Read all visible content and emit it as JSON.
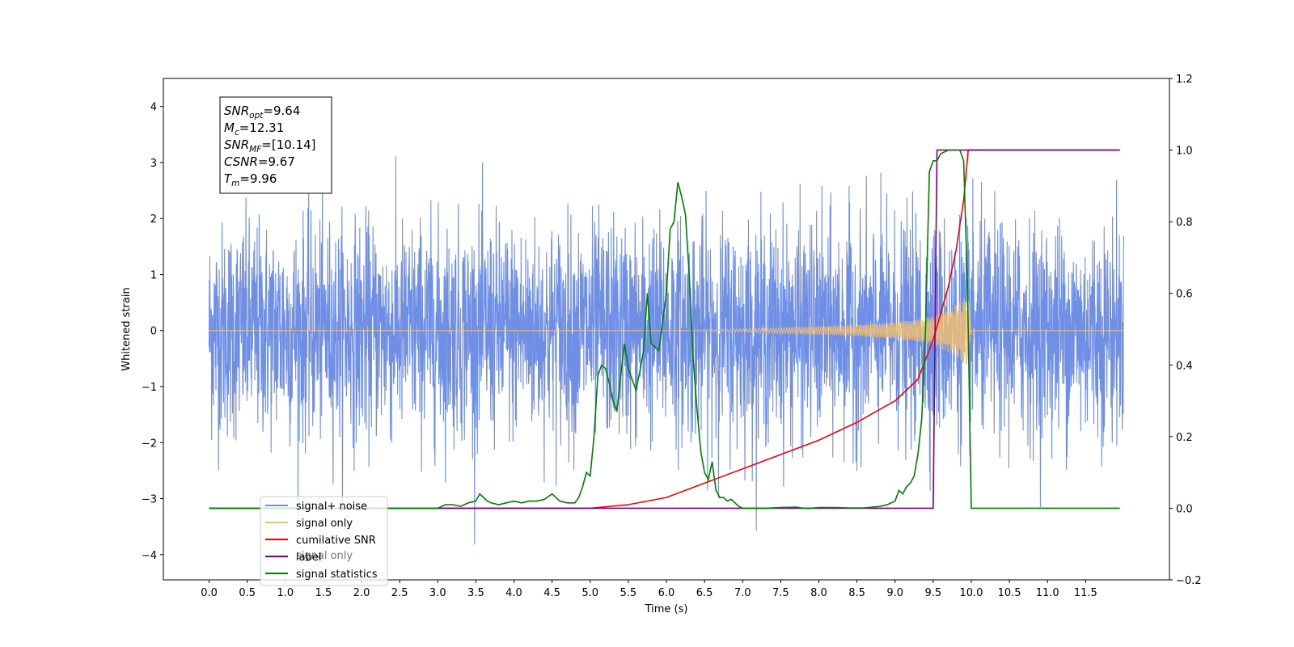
{
  "chart_data": {
    "type": "line",
    "xlabel": "Time (s)",
    "ylabel": "Whitened strain",
    "xlim": [
      -0.6,
      12.6
    ],
    "ylim": [
      -4.45,
      4.5
    ],
    "y2lim": [
      -0.2,
      1.2
    ],
    "x_ticks": [
      "0.0",
      "0.5",
      "1.0",
      "1.5",
      "2.0",
      "2.5",
      "3.0",
      "3.5",
      "4.0",
      "4.5",
      "5.0",
      "5.5",
      "6.0",
      "6.5",
      "7.0",
      "7.5",
      "8.0",
      "8.5",
      "9.0",
      "9.5",
      "10.0",
      "10.5",
      "11.0",
      "11.5"
    ],
    "y_ticks": [
      "−4",
      "−3",
      "−2",
      "−1",
      "0",
      "1",
      "2",
      "3",
      "4"
    ],
    "y2_ticks": [
      "−0.2",
      "0.0",
      "0.2",
      "0.4",
      "0.6",
      "0.8",
      "1.0",
      "1.2"
    ],
    "info_box": {
      "snr_opt": "SNR_opt=9.64",
      "mc": "M_c=12.31",
      "snr_mf": "SNR_MF=[10.14]",
      "csnr": "CSNR=9.67",
      "tm": "T_m=9.96",
      "lines": [
        {
          "main": "SNR",
          "sub": "opt",
          "value": "=9.64"
        },
        {
          "main": "M",
          "sub": "c",
          "value": "=12.31"
        },
        {
          "main": "SNR",
          "sub": "MF",
          "value": "=[10.14]"
        },
        {
          "main": "CSNR",
          "sub": "",
          "value": "=9.67"
        },
        {
          "main": "T",
          "sub": "m",
          "value": "=9.96"
        }
      ]
    },
    "legend": {
      "placement": "lower-left",
      "entries": [
        {
          "label": "signal+ noise",
          "color": "#6f8ee6"
        },
        {
          "label": "signal only",
          "color": "#f5c26b"
        },
        {
          "label": "cumilative SNR",
          "color": "#ff0000"
        },
        {
          "label": "label",
          "color": "#800080"
        },
        {
          "label": "signal statistics",
          "color": "#008000"
        }
      ],
      "ghost_text": "signal only"
    },
    "series": [
      {
        "name": "signal+ noise",
        "axis": "left",
        "color": "#6f8ee6",
        "description": "white noise, std ~1",
        "x_range": [
          0.0,
          12.0
        ],
        "std": 0.95
      },
      {
        "name": "signal only",
        "axis": "left",
        "color": "#f5c26b",
        "description": "chirp",
        "x": [
          0.0,
          6.0,
          7.0,
          8.0,
          8.5,
          9.0,
          9.3,
          9.5,
          9.7,
          9.8,
          9.9,
          9.96,
          10.0,
          12.0
        ],
        "envelope": [
          0.0,
          0.0,
          0.03,
          0.07,
          0.1,
          0.15,
          0.2,
          0.26,
          0.38,
          0.48,
          0.58,
          0.65,
          0.0,
          0.0
        ]
      },
      {
        "name": "cumilative SNR",
        "axis": "right",
        "color": "#ff0000",
        "x": [
          0.0,
          5.0,
          5.5,
          6.0,
          6.5,
          7.0,
          7.5,
          8.0,
          8.5,
          9.0,
          9.3,
          9.5,
          9.7,
          9.8,
          9.9,
          9.96,
          10.0,
          11.95
        ],
        "y": [
          0.0,
          0.0,
          0.01,
          0.03,
          0.07,
          0.11,
          0.15,
          0.19,
          0.24,
          0.3,
          0.36,
          0.47,
          0.62,
          0.72,
          0.86,
          1.0,
          1.0,
          1.0
        ]
      },
      {
        "name": "label",
        "axis": "right",
        "color": "#800080",
        "x": [
          0.0,
          9.5,
          9.55,
          9.96,
          9.96,
          11.95
        ],
        "y": [
          0.0,
          0.0,
          1.0,
          1.0,
          1.0,
          1.0
        ]
      },
      {
        "name": "signal statistics",
        "axis": "right",
        "color": "#008000",
        "x": [
          0.0,
          2.8,
          3.0,
          3.1,
          3.2,
          3.3,
          3.4,
          3.5,
          3.55,
          3.6,
          3.65,
          3.7,
          3.8,
          3.9,
          4.0,
          4.1,
          4.2,
          4.3,
          4.4,
          4.5,
          4.55,
          4.6,
          4.7,
          4.8,
          4.85,
          4.9,
          4.95,
          5.0,
          5.05,
          5.1,
          5.15,
          5.2,
          5.25,
          5.3,
          5.35,
          5.4,
          5.45,
          5.5,
          5.6,
          5.65,
          5.7,
          5.75,
          5.8,
          5.85,
          5.9,
          5.95,
          6.0,
          6.05,
          6.1,
          6.15,
          6.2,
          6.25,
          6.3,
          6.35,
          6.4,
          6.45,
          6.5,
          6.55,
          6.6,
          6.65,
          6.7,
          6.75,
          6.8,
          6.85,
          6.9,
          6.95,
          7.0,
          7.1,
          7.2,
          7.3,
          7.5,
          7.7,
          7.8,
          7.9,
          8.0,
          8.2,
          8.4,
          8.6,
          8.8,
          8.9,
          9.0,
          9.05,
          9.1,
          9.15,
          9.2,
          9.25,
          9.3,
          9.35,
          9.4,
          9.45,
          9.5,
          9.55,
          9.6,
          9.65,
          9.7,
          9.75,
          9.8,
          9.85,
          9.9,
          9.95,
          10.0,
          11.95
        ],
        "y": [
          0.0,
          0.0,
          0.0,
          0.01,
          0.01,
          0.005,
          0.015,
          0.02,
          0.04,
          0.03,
          0.02,
          0.015,
          0.01,
          0.015,
          0.02,
          0.015,
          0.02,
          0.02,
          0.025,
          0.04,
          0.03,
          0.02,
          0.015,
          0.015,
          0.03,
          0.06,
          0.1,
          0.09,
          0.2,
          0.37,
          0.4,
          0.39,
          0.35,
          0.3,
          0.27,
          0.37,
          0.46,
          0.39,
          0.33,
          0.38,
          0.44,
          0.6,
          0.46,
          0.45,
          0.44,
          0.52,
          0.6,
          0.78,
          0.8,
          0.91,
          0.87,
          0.82,
          0.65,
          0.42,
          0.28,
          0.16,
          0.1,
          0.08,
          0.13,
          0.05,
          0.03,
          0.03,
          0.02,
          0.025,
          0.015,
          0.005,
          0.0,
          0.0,
          0.0,
          0.0,
          0.002,
          0.003,
          0.0,
          0.0,
          0.002,
          0.002,
          0.001,
          0.001,
          0.005,
          0.01,
          0.02,
          0.05,
          0.04,
          0.06,
          0.07,
          0.09,
          0.15,
          0.25,
          0.5,
          0.94,
          0.97,
          0.97,
          0.99,
          0.995,
          1.0,
          1.0,
          1.0,
          1.0,
          0.97,
          0.62,
          0.0,
          0.0
        ]
      }
    ]
  }
}
